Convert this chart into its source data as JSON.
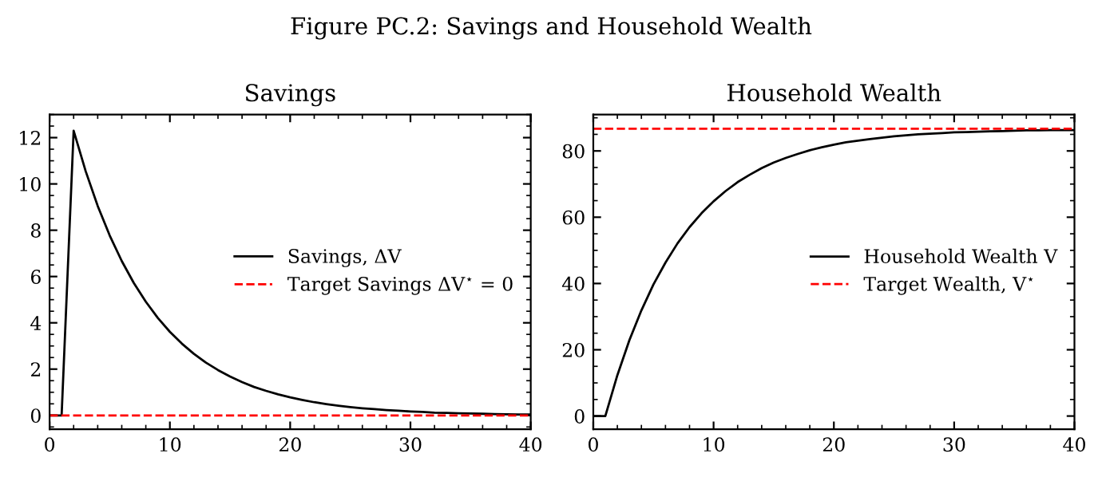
{
  "chart_data": [
    {
      "type": "line",
      "title": "Savings",
      "annotations": [
        "Figure PC.2: Savings and Household Wealth"
      ],
      "x": [
        0,
        1,
        2,
        3,
        4,
        5,
        6,
        7,
        8,
        9,
        10,
        11,
        12,
        13,
        14,
        15,
        16,
        17,
        18,
        19,
        20,
        21,
        22,
        23,
        24,
        25,
        26,
        27,
        28,
        29,
        30,
        31,
        32,
        33,
        34,
        35,
        36,
        37,
        38,
        39,
        40
      ],
      "series": [
        {
          "name": "Savings, ΔV",
          "color": "#000000",
          "values": [
            0,
            0,
            12.3,
            10.55,
            9.05,
            7.77,
            6.67,
            5.72,
            4.91,
            4.21,
            3.61,
            3.1,
            2.66,
            2.28,
            1.96,
            1.68,
            1.44,
            1.23,
            1.06,
            0.91,
            0.78,
            0.67,
            0.57,
            0.49,
            0.42,
            0.36,
            0.31,
            0.27,
            0.23,
            0.2,
            0.17,
            0.15,
            0.12,
            0.11,
            0.09,
            0.08,
            0.07,
            0.06,
            0.05,
            0.04,
            0.04
          ]
        }
      ],
      "ref_lines": [
        {
          "axis": "y",
          "value": 0,
          "label": "Target Savings ΔV$^{⋆}$ = 0",
          "color": "#ff0000",
          "line_style": "dashed"
        }
      ],
      "xlim": [
        0,
        40
      ],
      "xticks": [
        0,
        10,
        20,
        30,
        40
      ],
      "ylim": [
        -0.6,
        13
      ],
      "yticks": [
        0,
        2,
        4,
        6,
        8,
        10,
        12
      ],
      "legend": "right",
      "grid": false,
      "marker": "none",
      "line_style": "solid"
    },
    {
      "type": "line",
      "title": "Household Wealth",
      "x": [
        0,
        1,
        2,
        3,
        4,
        5,
        6,
        7,
        8,
        9,
        10,
        11,
        12,
        13,
        14,
        15,
        16,
        17,
        18,
        19,
        20,
        21,
        22,
        23,
        24,
        25,
        26,
        27,
        28,
        29,
        30,
        31,
        32,
        33,
        34,
        35,
        36,
        37,
        38,
        39,
        40
      ],
      "series": [
        {
          "name": "Household Wealth V",
          "color": "#000000",
          "values": [
            0,
            0,
            12.3,
            22.9,
            31.9,
            39.7,
            46.3,
            52.1,
            57.0,
            61.2,
            64.8,
            67.9,
            70.6,
            72.8,
            74.8,
            76.5,
            77.9,
            79.1,
            80.2,
            81.1,
            81.9,
            82.6,
            83.1,
            83.6,
            84.0,
            84.4,
            84.7,
            85.0,
            85.2,
            85.4,
            85.6,
            85.7,
            85.8,
            85.9,
            86.0,
            86.1,
            86.2,
            86.2,
            86.3,
            86.3,
            86.3
          ]
        }
      ],
      "ref_lines": [
        {
          "axis": "y",
          "value": 86.7,
          "label": "Target Wealth, V$^{⋆}$",
          "color": "#ff0000",
          "line_style": "dashed"
        }
      ],
      "xlim": [
        0,
        40
      ],
      "xticks": [
        0,
        10,
        20,
        30,
        40
      ],
      "ylim": [
        -4,
        91
      ],
      "yticks": [
        0,
        20,
        40,
        60,
        80
      ],
      "legend": "right",
      "grid": false,
      "marker": "none",
      "line_style": "solid"
    }
  ]
}
